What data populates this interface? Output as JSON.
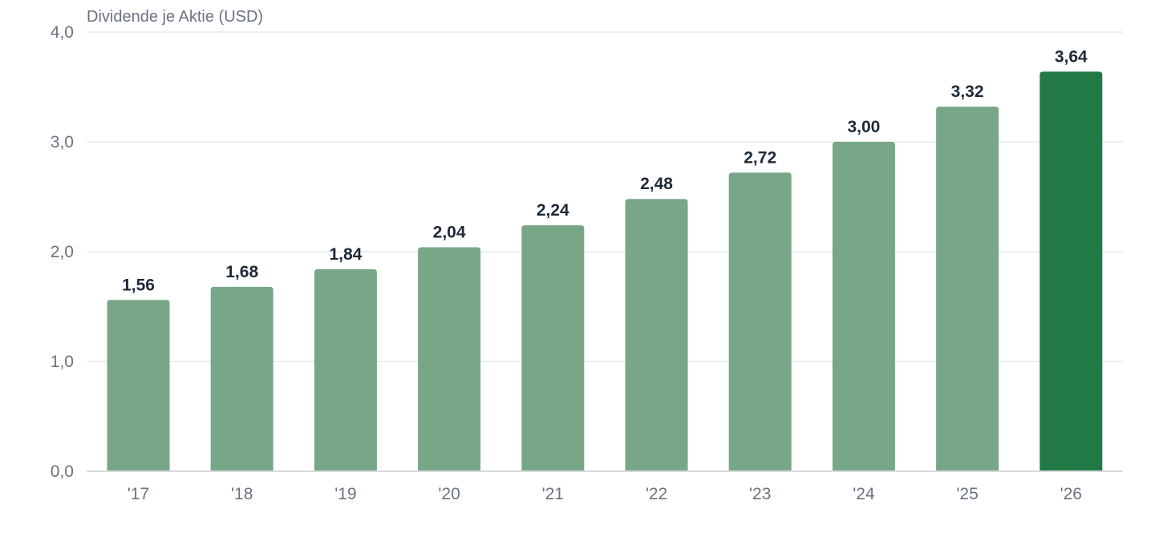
{
  "chart_data": {
    "type": "bar",
    "ylabel": "Dividende je Aktie (USD)",
    "categories": [
      "'17",
      "'18",
      "'19",
      "'20",
      "'21",
      "'22",
      "'23",
      "'24",
      "'25",
      "'26"
    ],
    "values": [
      1.56,
      1.68,
      1.84,
      2.04,
      2.24,
      2.48,
      2.72,
      3.0,
      3.32,
      3.64
    ],
    "value_labels": [
      "1,56",
      "1,68",
      "1,84",
      "2,04",
      "2,24",
      "2,48",
      "2,72",
      "3,00",
      "3,32",
      "3,64"
    ],
    "ylim": [
      0,
      4
    ],
    "yticks": [
      0,
      1,
      2,
      3,
      4
    ],
    "ytick_labels": [
      "0,0",
      "1,0",
      "2,0",
      "3,0",
      "4,0"
    ],
    "grid": true,
    "colors": {
      "bar": "#77a787",
      "highlight": "#217a45"
    },
    "highlight_index": 9
  }
}
